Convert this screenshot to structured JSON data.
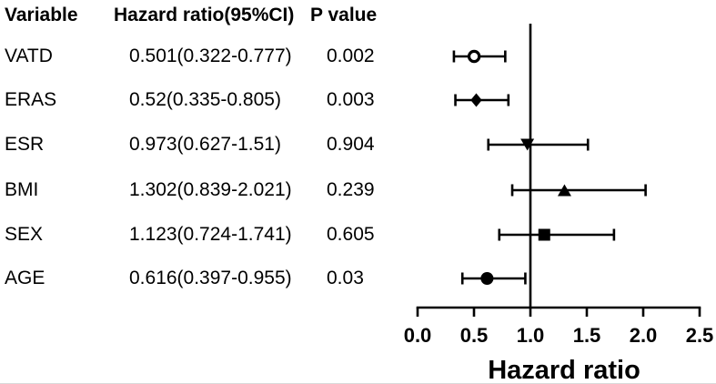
{
  "table": {
    "headers": [
      "Variable",
      "Hazard ratio(95%CI)",
      "P value"
    ],
    "rows": [
      {
        "variable": "VATD",
        "hr_ci": "0.501(0.322-0.777)",
        "p": "0.002"
      },
      {
        "variable": "ERAS",
        "hr_ci": "0.52(0.335-0.805)",
        "p": "0.003"
      },
      {
        "variable": "ESR",
        "hr_ci": "0.973(0.627-1.51)",
        "p": "0.904"
      },
      {
        "variable": "BMI",
        "hr_ci": "1.302(0.839-2.021)",
        "p": "0.239"
      },
      {
        "variable": "SEX",
        "hr_ci": "1.123(0.724-1.741)",
        "p": "0.605"
      },
      {
        "variable": "AGE",
        "hr_ci": "0.616(0.397-0.955)",
        "p": "0.03"
      }
    ]
  },
  "chart_data": {
    "type": "scatter",
    "subtype": "forest-plot",
    "title": "",
    "xlabel": "Hazard ratio",
    "ylabel": "",
    "xlim": [
      0.0,
      2.5
    ],
    "xticks": [
      "0.0",
      "0.5",
      "1.0",
      "1.5",
      "2.0",
      "2.5"
    ],
    "reference_line_x": 1.0,
    "grid": false,
    "legend": false,
    "series": [
      {
        "name": "VATD",
        "hr": 0.501,
        "ci_low": 0.322,
        "ci_high": 0.777,
        "p": 0.002,
        "marker": "open-circle"
      },
      {
        "name": "ERAS",
        "hr": 0.52,
        "ci_low": 0.335,
        "ci_high": 0.805,
        "p": 0.003,
        "marker": "filled-diamond"
      },
      {
        "name": "ESR",
        "hr": 0.973,
        "ci_low": 0.627,
        "ci_high": 1.51,
        "p": 0.904,
        "marker": "filled-triangle-down"
      },
      {
        "name": "BMI",
        "hr": 1.302,
        "ci_low": 0.839,
        "ci_high": 2.021,
        "p": 0.239,
        "marker": "filled-triangle-up"
      },
      {
        "name": "SEX",
        "hr": 1.123,
        "ci_low": 0.724,
        "ci_high": 1.741,
        "p": 0.605,
        "marker": "filled-square"
      },
      {
        "name": "AGE",
        "hr": 0.616,
        "ci_low": 0.397,
        "ci_high": 0.955,
        "p": 0.03,
        "marker": "filled-circle"
      }
    ],
    "colors": {
      "line": "#000000",
      "marker": "#000000",
      "background": "#ffffff"
    }
  }
}
